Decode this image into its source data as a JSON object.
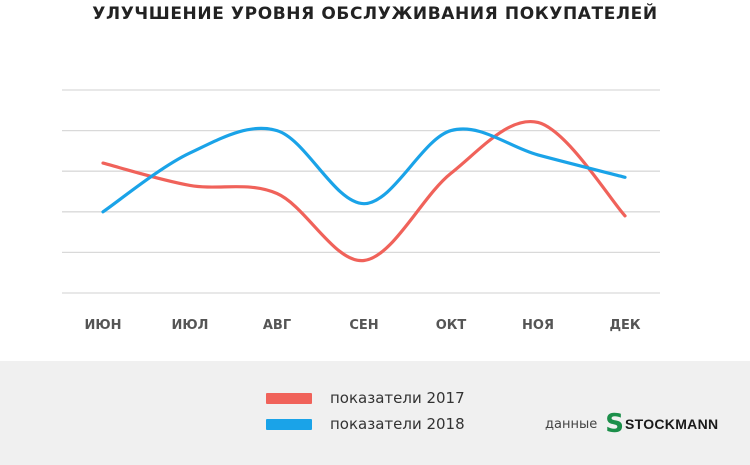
{
  "chart_data": {
    "type": "line",
    "title": "УЛУЧШЕНИЕ УРОВНЯ ОБСЛУЖИВАНИЯ ПОКУПАТЕЛЕЙ",
    "categories": [
      "ИЮН",
      "ИЮЛ",
      "АВГ",
      "СЕН",
      "ОКТ",
      "НОЯ",
      "ДЕК"
    ],
    "series": [
      {
        "name": "показатели 2017",
        "color": "#f0625a",
        "values": [
          3.2,
          2.65,
          2.45,
          0.8,
          2.95,
          4.2,
          1.9
        ]
      },
      {
        "name": "показатели 2018",
        "color": "#1aa3e8",
        "values": [
          2.0,
          3.45,
          4.0,
          2.2,
          4.0,
          3.4,
          2.85
        ]
      }
    ],
    "ylim": [
      0,
      5
    ],
    "grid": true,
    "legend_position": "bottom-center"
  },
  "footer": {
    "source_label": "данные",
    "logo": {
      "mark": "S",
      "text": "STOCKMANN",
      "color": "#1c8f4a"
    }
  }
}
